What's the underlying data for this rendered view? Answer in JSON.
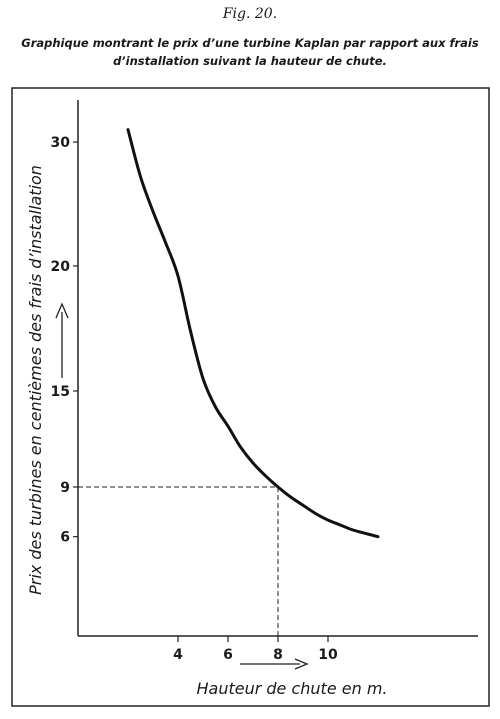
{
  "figure": {
    "label": "Fig. 20.",
    "caption_line1": "Graphique montrant le prix d’une turbine Kaplan par rapport aux frais",
    "caption_line2": "d’installation suivant la hauteur de chute."
  },
  "chart_data": {
    "type": "line",
    "title": "",
    "xlabel": "Hauteur de chute en m.",
    "ylabel": "Prix des turbines en centièmes des frais d’installation",
    "x_ticks": [
      4,
      6,
      8,
      10
    ],
    "y_ticks": [
      6,
      9,
      15,
      20,
      30
    ],
    "series": [
      {
        "x": [
          2,
          2.5,
          3,
          3.5,
          4,
          4.5,
          5,
          5.5,
          6,
          6.5,
          7,
          7.5,
          8,
          8.5,
          9,
          9.5,
          10,
          10.5,
          11,
          11.5,
          12
        ],
        "values": [
          31,
          27.2,
          24.4,
          21.9,
          19.6,
          17.4,
          15.5,
          14.0,
          12.8,
          11.5,
          10.5,
          9.7,
          9.0,
          8.4,
          7.9,
          7.4,
          7.0,
          6.7,
          6.4,
          6.2,
          6.0
        ]
      }
    ],
    "reference_point": {
      "x": 8,
      "y": 9
    },
    "grid": false,
    "legend": "none"
  }
}
